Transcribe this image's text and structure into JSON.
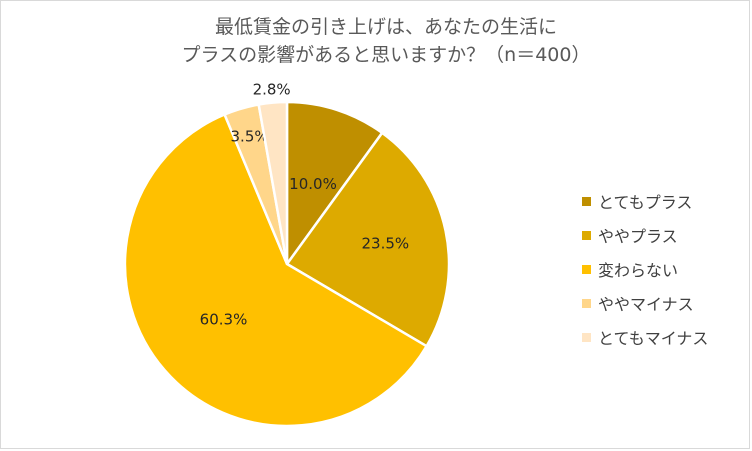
{
  "chart_data": {
    "type": "pie",
    "title_lines": [
      "最低賃金の引き上げは、あなたの生活に",
      "プラスの影響があると思いますか？（n＝400）"
    ],
    "categories": [
      "とてもプラス",
      "ややプラス",
      "変わらない",
      "ややマイナス",
      "とてもマイナス"
    ],
    "values": [
      10.0,
      23.5,
      60.3,
      3.5,
      2.8
    ],
    "value_labels": [
      "10.0%",
      "23.5%",
      "60.3%",
      "3.5%",
      "2.8%"
    ],
    "colors": [
      "#bf8f00",
      "#ddaa00",
      "#ffc000",
      "#ffd68a",
      "#ffe5c4"
    ],
    "start_angle_deg": 0,
    "direction": "clockwise",
    "legend_position": "right"
  }
}
